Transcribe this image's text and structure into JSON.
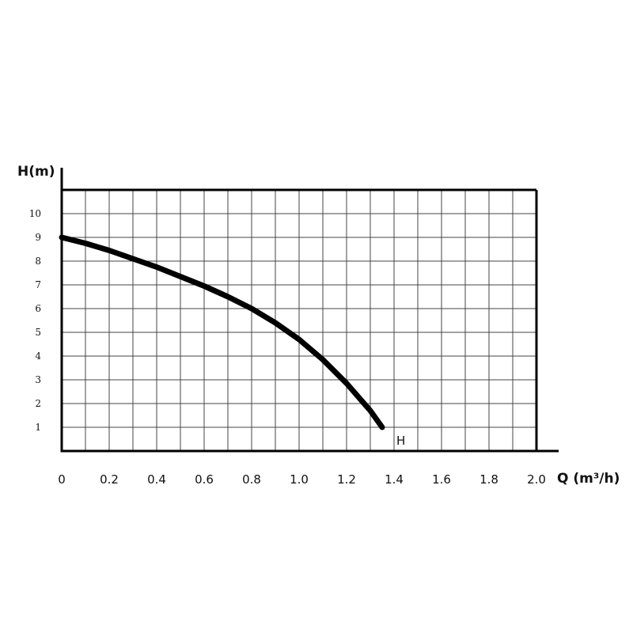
{
  "chart_data": {
    "type": "line",
    "xlabel": "Q (m³/h)",
    "ylabel": "H(m)",
    "xlim": [
      0,
      2.0
    ],
    "ylim": [
      0,
      11
    ],
    "x_ticks": [
      "0",
      "0.2",
      "0.4",
      "0.6",
      "0.8",
      "1.0",
      "1.2",
      "1.4",
      "1.6",
      "1.8",
      "2.0"
    ],
    "y_ticks": [
      "1",
      "2",
      "3",
      "4",
      "5",
      "6",
      "7",
      "8",
      "9",
      "10"
    ],
    "grid": true,
    "series": [
      {
        "name": "H",
        "color": "#000000",
        "x": [
          0,
          0.1,
          0.2,
          0.3,
          0.4,
          0.5,
          0.6,
          0.7,
          0.8,
          0.9,
          1.0,
          1.1,
          1.2,
          1.3,
          1.35
        ],
        "y": [
          9.0,
          8.75,
          8.45,
          8.1,
          7.75,
          7.35,
          6.95,
          6.5,
          6.0,
          5.4,
          4.7,
          3.85,
          2.85,
          1.7,
          1.0
        ]
      }
    ]
  }
}
